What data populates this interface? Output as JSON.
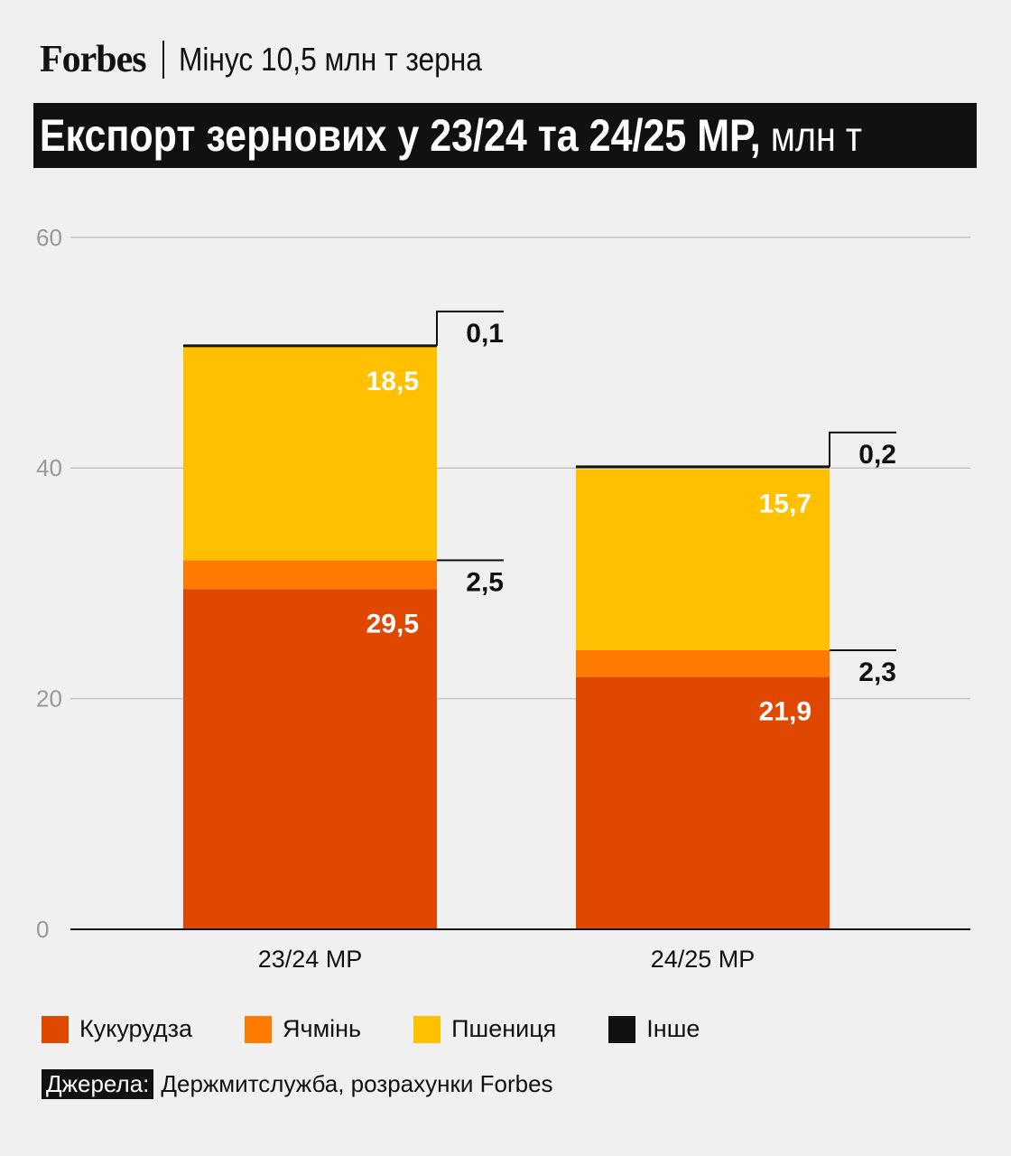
{
  "header": {
    "brand": "Forbes",
    "subtitle": "Мінус 10,5 млн т зерна",
    "title_main": "Експорт зернових у 23/24 та 24/25 МР,",
    "title_unit": " млн т"
  },
  "chart_data": {
    "type": "bar",
    "stacked": true,
    "categories": [
      "23/24 МР",
      "24/25 МР"
    ],
    "series": [
      {
        "name": "Кукурудза",
        "values": [
          29.5,
          21.9
        ],
        "labels": [
          "29,5",
          "21,9"
        ],
        "color": "#e04700"
      },
      {
        "name": "Ячмінь",
        "values": [
          2.5,
          2.3
        ],
        "labels": [
          "2,5",
          "2,3"
        ],
        "color": "#ff7a00"
      },
      {
        "name": "Пшениця",
        "values": [
          18.5,
          15.7
        ],
        "labels": [
          "18,5",
          "15,7"
        ],
        "color": "#ffc000"
      },
      {
        "name": "Інше",
        "values": [
          0.1,
          0.2
        ],
        "labels": [
          "0,1",
          "0,2"
        ],
        "color": "#111111"
      }
    ],
    "yticks": [
      0,
      20,
      40,
      60
    ],
    "ylim": [
      0,
      60
    ],
    "grid": true,
    "legend_position": "bottom"
  },
  "legend": [
    {
      "label": "Кукурудза",
      "color": "#e04700"
    },
    {
      "label": "Ячмінь",
      "color": "#ff7a00"
    },
    {
      "label": "Пшениця",
      "color": "#ffc000"
    },
    {
      "label": "Інше",
      "color": "#111111"
    }
  ],
  "source": {
    "label": "Джерела:",
    "text": "Держмитслужба, розрахунки Forbes"
  }
}
